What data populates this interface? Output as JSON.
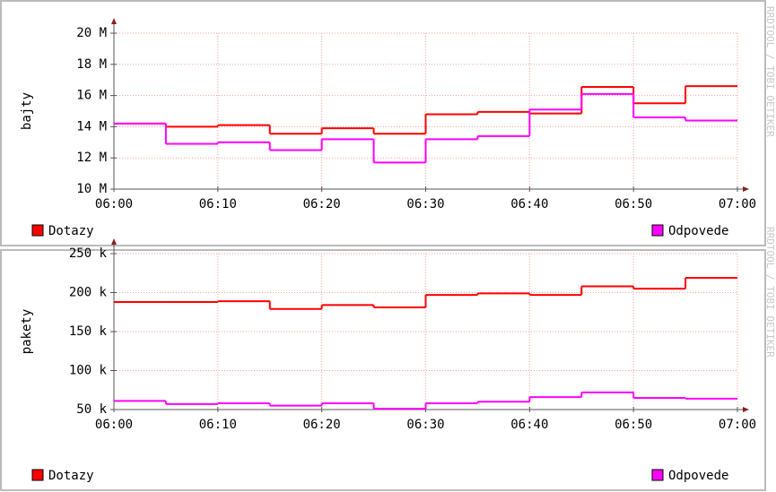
{
  "chart_data": [
    {
      "type": "step",
      "ylabel": "bajty",
      "watermark": "RRDTOOL / TOBI OETIKER",
      "x": [
        "06:00",
        "06:05",
        "06:10",
        "06:15",
        "06:20",
        "06:25",
        "06:30",
        "06:35",
        "06:40",
        "06:45",
        "06:50",
        "06:55"
      ],
      "xlim": [
        "06:00",
        "07:00"
      ],
      "xticks": [
        "06:00",
        "06:10",
        "06:20",
        "06:30",
        "06:40",
        "06:50",
        "07:00"
      ],
      "ylim": [
        10000000,
        20000000
      ],
      "yticks": [
        {
          "value": 10000000,
          "label": "10 M"
        },
        {
          "value": 12000000,
          "label": "12 M"
        },
        {
          "value": 14000000,
          "label": "14 M"
        },
        {
          "value": 16000000,
          "label": "16 M"
        },
        {
          "value": 18000000,
          "label": "18 M"
        },
        {
          "value": 20000000,
          "label": "20 M"
        }
      ],
      "grid": true,
      "series": [
        {
          "name": "Dotazy",
          "color": "#ff0000",
          "values": [
            14200000,
            14000000,
            14100000,
            13550000,
            13900000,
            13550000,
            14800000,
            14950000,
            14850000,
            16550000,
            15500000,
            16600000
          ]
        },
        {
          "name": "Odpovede",
          "color": "#ff00ff",
          "values": [
            14200000,
            12900000,
            13000000,
            12500000,
            13200000,
            11700000,
            13200000,
            13400000,
            15100000,
            16100000,
            14600000,
            14400000
          ]
        }
      ]
    },
    {
      "type": "step",
      "ylabel": "pakety",
      "watermark": "RRDTOOL / TOBI OETIKER",
      "x": [
        "06:00",
        "06:05",
        "06:10",
        "06:15",
        "06:20",
        "06:25",
        "06:30",
        "06:35",
        "06:40",
        "06:45",
        "06:50",
        "06:55"
      ],
      "xlim": [
        "06:00",
        "07:00"
      ],
      "xticks": [
        "06:00",
        "06:10",
        "06:20",
        "06:30",
        "06:40",
        "06:50",
        "07:00"
      ],
      "ylim": [
        50000,
        250000
      ],
      "yticks": [
        {
          "value": 50000,
          "label": "50 k"
        },
        {
          "value": 100000,
          "label": "100 k"
        },
        {
          "value": 150000,
          "label": "150 k"
        },
        {
          "value": 200000,
          "label": "200 k"
        },
        {
          "value": 250000,
          "label": "250 k"
        }
      ],
      "grid": true,
      "series": [
        {
          "name": "Dotazy",
          "color": "#ff0000",
          "values": [
            188000,
            188000,
            189000,
            179000,
            184000,
            181000,
            197000,
            199000,
            197000,
            208000,
            205000,
            219000
          ]
        },
        {
          "name": "Odpovede",
          "color": "#ff00ff",
          "values": [
            61000,
            57000,
            58000,
            55000,
            58000,
            51000,
            58000,
            60000,
            66000,
            72000,
            65000,
            64000
          ]
        }
      ]
    }
  ]
}
